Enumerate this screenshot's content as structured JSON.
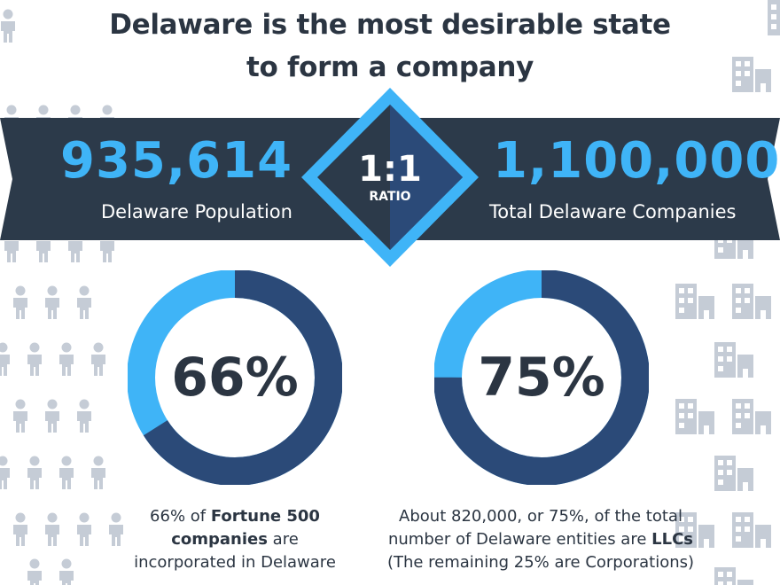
{
  "title": {
    "line1": "Delaware is the most desirable state",
    "line2": "to form a company"
  },
  "population": {
    "value": "935,614",
    "label": "Delaware Population"
  },
  "ratio": {
    "value": "1:1",
    "label": "RATIO"
  },
  "companies": {
    "value": "1,100,000",
    "label": "Total Delaware Companies"
  },
  "stats": [
    {
      "percent_text": "66%",
      "value": 66,
      "caption_line1_pre": "66% of ",
      "caption_line1_bold": "Fortune 500",
      "caption_line2_bold": "companies",
      "caption_line2_post": " are",
      "caption_line3": "incorporated in Delaware"
    },
    {
      "percent_text": "75%",
      "value": 75,
      "caption_line1": "About 820,000, or 75%, of the total",
      "caption_line2_pre": "number of Delaware entities are ",
      "caption_line2_bold": "LLCs",
      "caption_line3": "(The remaining 25% are Corporations)"
    }
  ],
  "colors": {
    "dark_navy": "#2b3542",
    "banner": "#2c3a4a",
    "accent_blue": "#3fb4f7",
    "donut_dark": "#2b4a78",
    "donut_light": "#3fb4f7",
    "icon_gray": "#c5ccd6"
  },
  "icons": [
    "person-icon",
    "building-icon",
    "diamond-badge"
  ]
}
